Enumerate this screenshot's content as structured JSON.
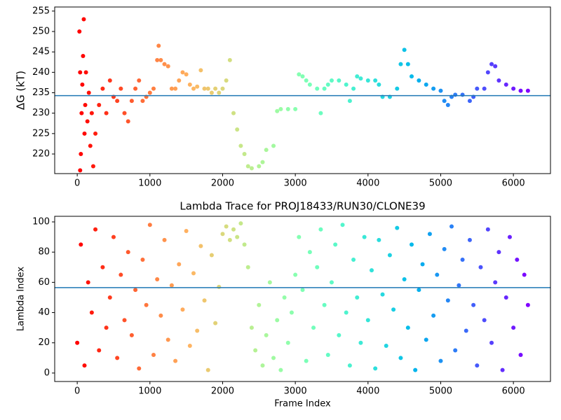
{
  "chart_data": [
    {
      "type": "scatter",
      "ylabel": "ΔG (kT)",
      "colormap": "rainbow_r",
      "hline": 234.3,
      "hline_color": "#1f77b4",
      "xlim": [
        -310,
        6510
      ],
      "ylim": [
        215.2,
        256
      ],
      "xticks": [
        0,
        1000,
        2000,
        3000,
        4000,
        5000,
        6000
      ],
      "yticks": [
        220,
        225,
        230,
        235,
        240,
        245,
        250,
        255
      ],
      "x": [
        30,
        40,
        50,
        40,
        60,
        70,
        80,
        90,
        100,
        110,
        120,
        140,
        160,
        180,
        200,
        220,
        250,
        300,
        350,
        400,
        450,
        500,
        550,
        600,
        650,
        700,
        750,
        800,
        850,
        900,
        950,
        1000,
        1050,
        1100,
        1120,
        1150,
        1200,
        1250,
        1300,
        1350,
        1400,
        1450,
        1500,
        1550,
        1600,
        1650,
        1700,
        1750,
        1800,
        1850,
        1900,
        1950,
        2000,
        2050,
        2100,
        2150,
        2200,
        2250,
        2300,
        2350,
        2400,
        2500,
        2550,
        2600,
        2700,
        2750,
        2800,
        2900,
        3000,
        3050,
        3100,
        3150,
        3200,
        3300,
        3350,
        3400,
        3450,
        3500,
        3600,
        3700,
        3750,
        3800,
        3850,
        3900,
        4000,
        4100,
        4150,
        4200,
        4300,
        4400,
        4450,
        4500,
        4550,
        4600,
        4700,
        4800,
        4900,
        5000,
        5050,
        5100,
        5150,
        5200,
        5300,
        5400,
        5450,
        5500,
        5600,
        5650,
        5700,
        5750,
        5800,
        5900,
        6000,
        6100,
        6200
      ],
      "values": [
        250,
        240,
        220,
        216,
        230,
        237,
        244,
        253,
        225,
        232,
        240,
        228,
        235,
        222,
        230,
        217,
        225,
        232,
        236,
        230,
        238,
        234,
        233,
        236,
        230,
        228,
        233,
        236,
        238,
        233,
        234,
        235,
        236,
        243,
        246.5,
        243,
        242,
        241.5,
        236,
        236,
        238,
        240,
        239.5,
        237,
        236,
        236.5,
        240.5,
        236,
        236,
        235,
        236,
        235,
        236,
        238,
        243,
        230,
        226,
        222,
        220,
        217,
        216.5,
        217,
        218,
        221,
        222,
        230.5,
        231,
        231,
        231,
        239.5,
        239,
        238,
        237,
        236,
        230,
        236,
        237,
        238,
        238,
        237,
        233,
        236,
        239,
        238.5,
        238,
        238,
        237,
        234,
        234,
        236,
        242,
        245.5,
        242,
        239,
        238,
        237,
        236,
        235.5,
        233,
        232,
        234,
        234.5,
        234.5,
        233,
        234,
        236,
        236,
        240,
        242,
        241.5,
        238,
        237,
        236,
        235.5,
        235.5
      ]
    },
    {
      "type": "scatter",
      "title": "Lambda Trace for PROJ18433/RUN30/CLONE39",
      "xlabel": "Frame Index",
      "ylabel": "Lambda Index",
      "colormap": "rainbow_r",
      "hline": 56.5,
      "hline_color": "#1f77b4",
      "xlim": [
        -310,
        6510
      ],
      "ylim": [
        -5.6,
        103.7
      ],
      "xticks": [
        0,
        1000,
        2000,
        3000,
        4000,
        5000,
        6000
      ],
      "yticks": [
        0,
        20,
        40,
        60,
        80,
        100
      ],
      "x": [
        0,
        50,
        100,
        150,
        200,
        250,
        300,
        350,
        400,
        450,
        500,
        550,
        600,
        650,
        700,
        750,
        800,
        850,
        900,
        950,
        1000,
        1050,
        1100,
        1150,
        1200,
        1250,
        1300,
        1350,
        1400,
        1450,
        1500,
        1550,
        1600,
        1650,
        1700,
        1750,
        1800,
        1850,
        1900,
        1950,
        2000,
        2050,
        2100,
        2150,
        2200,
        2250,
        2300,
        2350,
        2400,
        2450,
        2500,
        2550,
        2600,
        2650,
        2700,
        2750,
        2800,
        2850,
        2900,
        2950,
        3000,
        3050,
        3100,
        3150,
        3200,
        3250,
        3300,
        3350,
        3400,
        3450,
        3500,
        3550,
        3600,
        3650,
        3700,
        3750,
        3800,
        3850,
        3900,
        3950,
        4000,
        4050,
        4100,
        4150,
        4200,
        4250,
        4300,
        4350,
        4400,
        4450,
        4500,
        4550,
        4600,
        4650,
        4700,
        4750,
        4800,
        4850,
        4900,
        4950,
        5000,
        5050,
        5100,
        5150,
        5200,
        5250,
        5300,
        5350,
        5400,
        5450,
        5500,
        5550,
        5600,
        5650,
        5700,
        5750,
        5800,
        5850,
        5900,
        5950,
        6000,
        6050,
        6100,
        6150,
        6200
      ],
      "values": [
        20,
        85,
        5,
        60,
        40,
        95,
        15,
        70,
        30,
        50,
        90,
        10,
        65,
        35,
        80,
        25,
        55,
        3,
        75,
        45,
        98,
        12,
        62,
        38,
        88,
        22,
        58,
        8,
        72,
        42,
        94,
        18,
        66,
        28,
        84,
        48,
        2,
        78,
        33,
        57,
        92,
        97,
        88,
        95,
        90,
        99,
        85,
        70,
        30,
        15,
        45,
        5,
        25,
        60,
        10,
        35,
        2,
        50,
        20,
        40,
        65,
        90,
        55,
        8,
        80,
        30,
        70,
        95,
        45,
        12,
        60,
        85,
        25,
        98,
        40,
        5,
        75,
        50,
        20,
        90,
        35,
        68,
        3,
        88,
        52,
        18,
        78,
        42,
        96,
        10,
        62,
        30,
        85,
        2,
        55,
        72,
        22,
        92,
        38,
        65,
        8,
        82,
        48,
        97,
        15,
        58,
        75,
        28,
        88,
        45,
        5,
        70,
        35,
        95,
        20,
        60,
        80,
        2,
        50,
        90,
        30,
        75,
        12,
        65,
        45
      ]
    }
  ]
}
